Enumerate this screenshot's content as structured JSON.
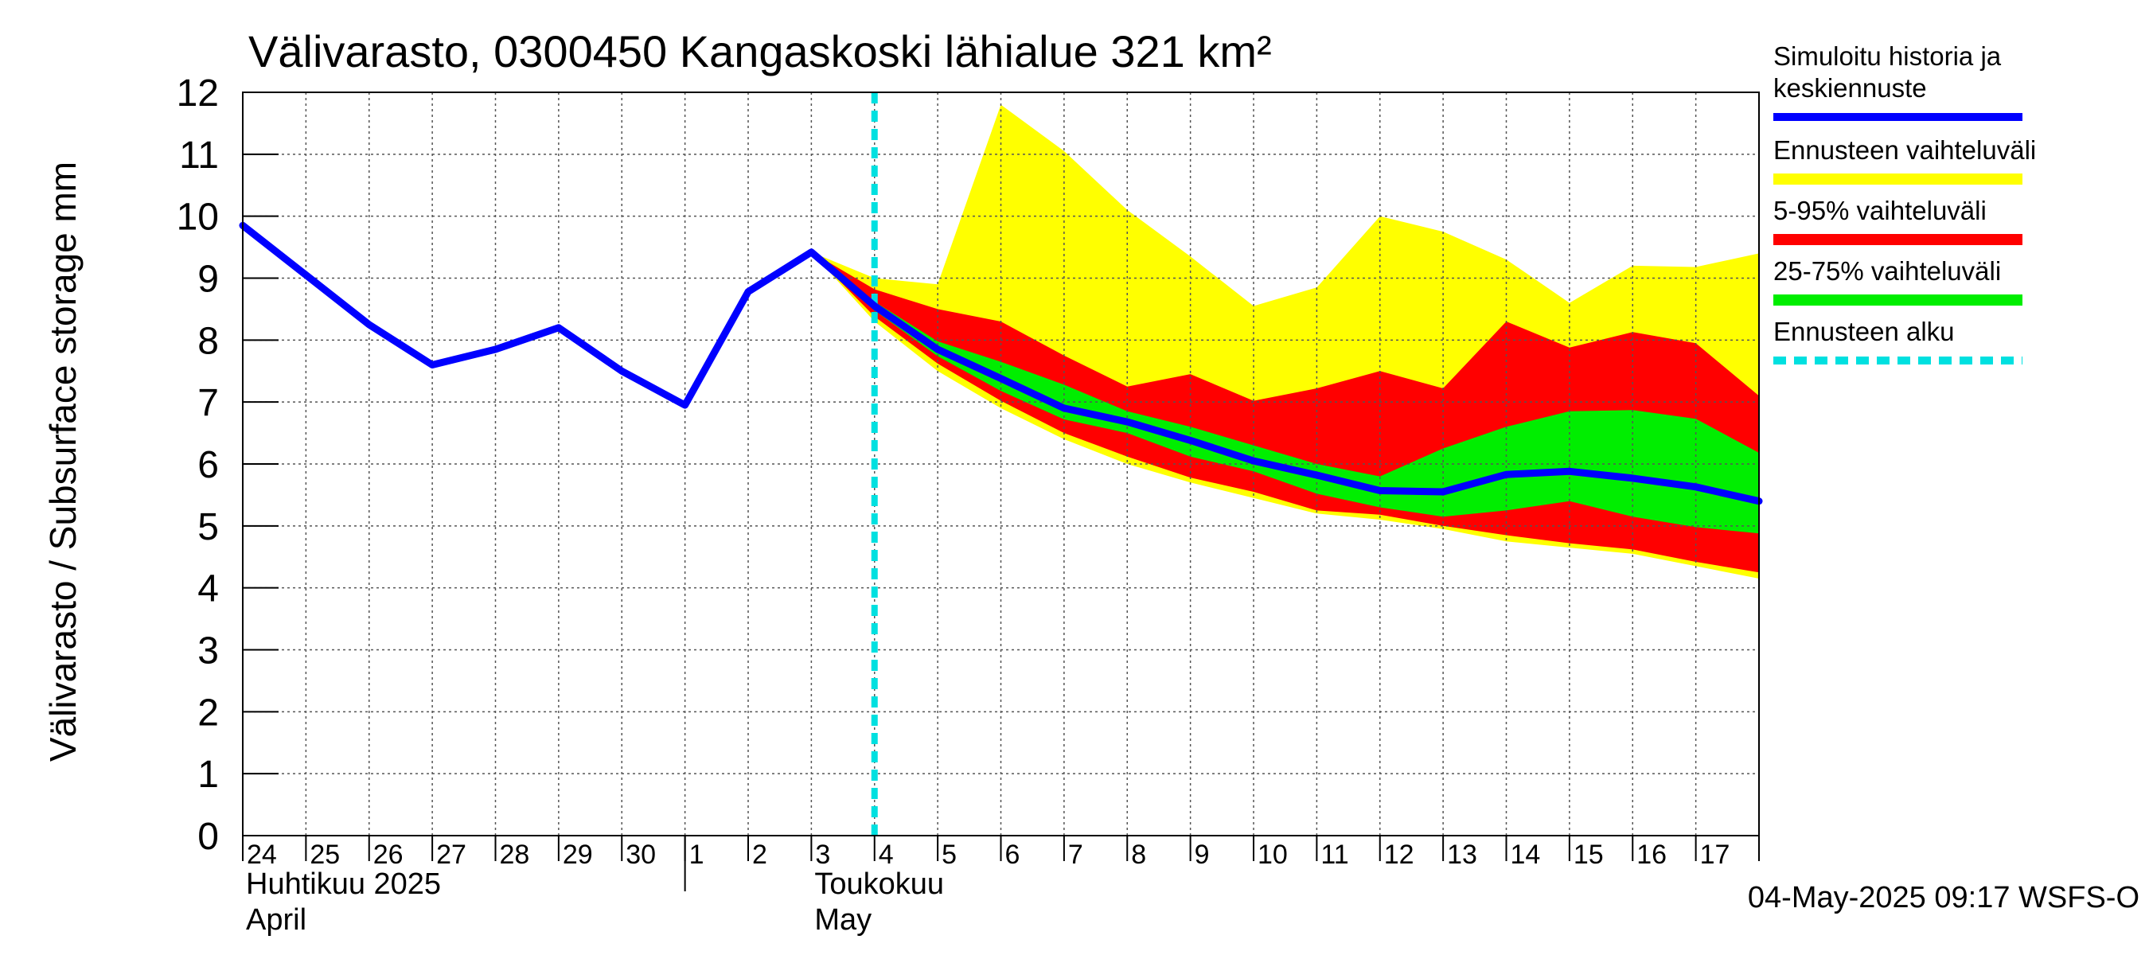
{
  "chart_data": {
    "type": "area",
    "title": "Välivarasto, 0300450 Kangaskoski lähialue 321 km²",
    "ylabel": "Välivarasto / Subsurface storage  mm",
    "ylim": [
      0,
      12
    ],
    "yticks": [
      "0",
      "1",
      "2",
      "3",
      "4",
      "5",
      "6",
      "7",
      "8",
      "9",
      "10",
      "11",
      "12"
    ],
    "grid": true,
    "legend_position": "right",
    "x_day_labels": [
      "24",
      "25",
      "26",
      "27",
      "28",
      "29",
      "30",
      "1",
      "2",
      "3",
      "4",
      "5",
      "6",
      "7",
      "8",
      "9",
      "10",
      "11",
      "12",
      "13",
      "14",
      "15",
      "16",
      "17"
    ],
    "month_labels": [
      {
        "fi": "Huhtikuu  2025",
        "en": "April"
      },
      {
        "fi": "Toukokuu",
        "en": "May"
      }
    ],
    "footer": "04-May-2025 09:17 WSFS-O",
    "forecast_start": "2025-05-04",
    "history": {
      "name": "Simuloitu historia ja keskiennuste",
      "x": [
        "2025-04-24",
        "2025-04-25",
        "2025-04-26",
        "2025-04-27",
        "2025-04-28",
        "2025-04-29",
        "2025-04-30",
        "2025-05-01",
        "2025-05-02",
        "2025-05-03",
        "2025-05-04"
      ],
      "values": [
        9.85,
        9.05,
        8.25,
        7.6,
        7.85,
        8.2,
        7.5,
        6.95,
        8.78,
        9.42,
        8.55
      ]
    },
    "forecast_x": [
      "2025-05-03",
      "2025-05-04",
      "2025-05-05",
      "2025-05-06",
      "2025-05-07",
      "2025-05-08",
      "2025-05-09",
      "2025-05-10",
      "2025-05-11",
      "2025-05-12",
      "2025-05-13",
      "2025-05-14",
      "2025-05-15",
      "2025-05-16",
      "2025-05-17",
      "2025-05-18"
    ],
    "bands": [
      {
        "name": "Ennusteen vaihteluväli",
        "color": "#ffff00",
        "upper": [
          9.42,
          9.0,
          8.9,
          11.8,
          11.05,
          10.1,
          9.35,
          8.55,
          8.85,
          10.0,
          9.75,
          9.3,
          8.6,
          9.2,
          9.18,
          9.4
        ],
        "lower": [
          9.42,
          8.3,
          7.5,
          6.9,
          6.4,
          6.0,
          5.7,
          5.45,
          5.2,
          5.1,
          4.95,
          4.75,
          4.65,
          4.55,
          4.35,
          4.15
        ]
      },
      {
        "name": "5-95% vaihteluväli",
        "color": "#ff0000",
        "upper": [
          9.42,
          8.82,
          8.5,
          8.3,
          7.75,
          7.25,
          7.45,
          7.02,
          7.22,
          7.5,
          7.22,
          8.3,
          7.88,
          8.13,
          7.95,
          7.1
        ],
        "lower": [
          9.42,
          8.38,
          7.62,
          7.02,
          6.5,
          6.12,
          5.78,
          5.55,
          5.25,
          5.18,
          5.0,
          4.85,
          4.72,
          4.62,
          4.42,
          4.25
        ]
      },
      {
        "name": "25-75% vaihteluväli",
        "color": "#00ee00",
        "upper": [
          9.42,
          8.62,
          7.98,
          7.65,
          7.28,
          6.85,
          6.6,
          6.3,
          6.0,
          5.8,
          6.25,
          6.6,
          6.85,
          6.87,
          6.73,
          6.18
        ],
        "lower": [
          9.42,
          8.48,
          7.74,
          7.18,
          6.72,
          6.5,
          6.12,
          5.88,
          5.52,
          5.3,
          5.15,
          5.25,
          5.4,
          5.15,
          4.98,
          4.88
        ]
      }
    ],
    "forecast_median": {
      "x": [
        "2025-05-04",
        "2025-05-05",
        "2025-05-06",
        "2025-05-07",
        "2025-05-08",
        "2025-05-09",
        "2025-05-10",
        "2025-05-11",
        "2025-05-12",
        "2025-05-13",
        "2025-05-14",
        "2025-05-15",
        "2025-05-16",
        "2025-05-17",
        "2025-05-18"
      ],
      "values": [
        8.55,
        7.85,
        7.38,
        6.9,
        6.68,
        6.38,
        6.05,
        5.82,
        5.57,
        5.55,
        5.83,
        5.88,
        5.77,
        5.63,
        5.4
      ]
    },
    "legend": [
      {
        "label_lines": [
          "Simuloitu historia ja",
          "keskiennuste"
        ],
        "color": "#0000ff",
        "style": "line"
      },
      {
        "label_lines": [
          "Ennusteen vaihteluväli"
        ],
        "color": "#ffff00",
        "style": "band"
      },
      {
        "label_lines": [
          "5-95% vaihteluväli"
        ],
        "color": "#ff0000",
        "style": "band"
      },
      {
        "label_lines": [
          "25-75% vaihteluväli"
        ],
        "color": "#00ee00",
        "style": "band"
      },
      {
        "label_lines": [
          "Ennusteen alku"
        ],
        "color": "#00e0e0",
        "style": "dashed"
      }
    ]
  }
}
